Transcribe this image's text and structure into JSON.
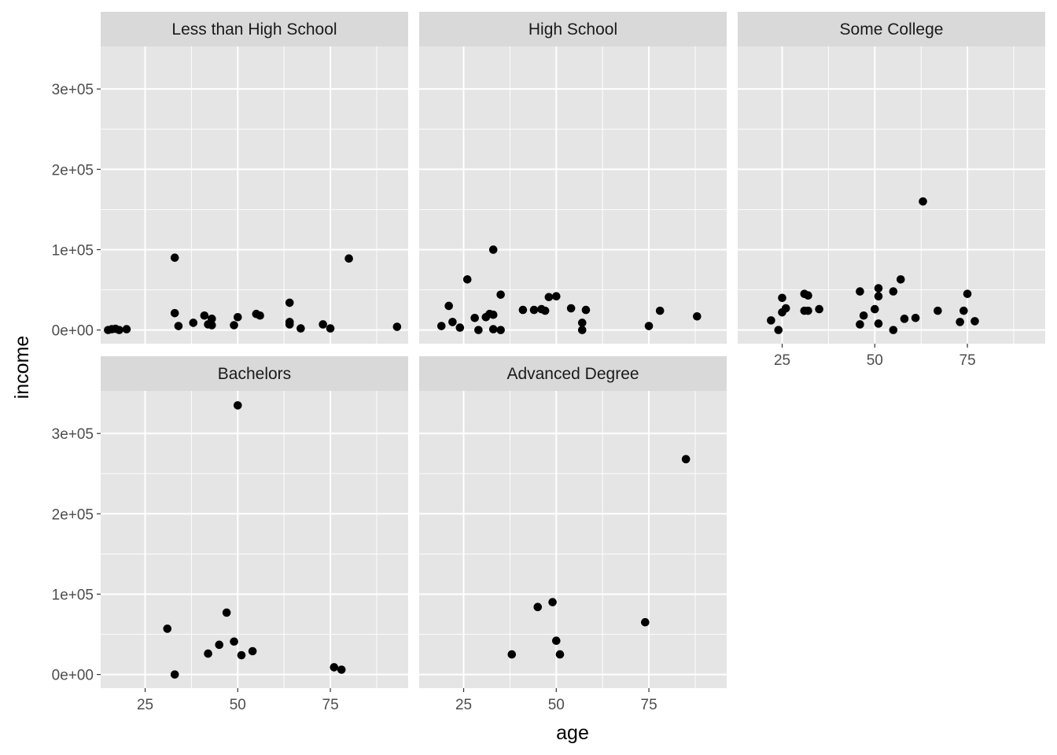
{
  "chart_data": {
    "type": "scatter",
    "facet_layout": "wrap",
    "xlabel": "age",
    "ylabel": "income",
    "xlim": [
      13,
      96
    ],
    "ylim": [
      -17000,
      353000
    ],
    "x_ticks": [
      25,
      50,
      75
    ],
    "y_ticks": [
      0,
      100000,
      200000,
      300000
    ],
    "y_tick_labels": [
      "0e+00",
      "1e+05",
      "2e+05",
      "3e+05"
    ],
    "grid": true,
    "colors": {
      "panel_background": "#e5e5e5",
      "strip_background": "#d9d9d9",
      "grid": "#ffffff",
      "point": "#000000"
    },
    "facets": [
      {
        "name": "Less than High School",
        "points": [
          [
            15,
            0
          ],
          [
            16,
            1000
          ],
          [
            17,
            1500
          ],
          [
            18,
            0
          ],
          [
            20,
            1000
          ],
          [
            33,
            90000
          ],
          [
            33,
            21000
          ],
          [
            34,
            5000
          ],
          [
            38,
            9000
          ],
          [
            41,
            18000
          ],
          [
            42,
            7000
          ],
          [
            43,
            6000
          ],
          [
            43,
            14000
          ],
          [
            49,
            6000
          ],
          [
            50,
            16000
          ],
          [
            55,
            20000
          ],
          [
            56,
            18000
          ],
          [
            64,
            34000
          ],
          [
            64,
            10000
          ],
          [
            64,
            7000
          ],
          [
            67,
            2000
          ],
          [
            73,
            7000
          ],
          [
            75,
            2000
          ],
          [
            80,
            89000
          ],
          [
            93,
            4000
          ]
        ]
      },
      {
        "name": "High School",
        "points": [
          [
            19,
            5000
          ],
          [
            21,
            30000
          ],
          [
            22,
            10000
          ],
          [
            24,
            3000
          ],
          [
            26,
            63000
          ],
          [
            28,
            15000
          ],
          [
            29,
            0
          ],
          [
            31,
            16000
          ],
          [
            32,
            20000
          ],
          [
            33,
            100000
          ],
          [
            33,
            19000
          ],
          [
            33,
            1000
          ],
          [
            35,
            44000
          ],
          [
            35,
            0
          ],
          [
            41,
            25000
          ],
          [
            44,
            25000
          ],
          [
            46,
            26000
          ],
          [
            47,
            24000
          ],
          [
            48,
            41000
          ],
          [
            50,
            42000
          ],
          [
            54,
            27000
          ],
          [
            57,
            9000
          ],
          [
            57,
            0
          ],
          [
            58,
            25000
          ],
          [
            75,
            5000
          ],
          [
            78,
            24000
          ],
          [
            88,
            17000
          ]
        ]
      },
      {
        "name": "Some College",
        "points": [
          [
            22,
            12000
          ],
          [
            24,
            0
          ],
          [
            25,
            40000
          ],
          [
            25,
            22000
          ],
          [
            26,
            27000
          ],
          [
            31,
            45000
          ],
          [
            31,
            24000
          ],
          [
            32,
            43000
          ],
          [
            32,
            24000
          ],
          [
            35,
            26000
          ],
          [
            46,
            48000
          ],
          [
            46,
            7000
          ],
          [
            47,
            18000
          ],
          [
            50,
            26000
          ],
          [
            51,
            52000
          ],
          [
            51,
            42000
          ],
          [
            51,
            8000
          ],
          [
            55,
            48000
          ],
          [
            55,
            0
          ],
          [
            57,
            63000
          ],
          [
            58,
            14000
          ],
          [
            61,
            15000
          ],
          [
            63,
            160000
          ],
          [
            67,
            24000
          ],
          [
            73,
            10000
          ],
          [
            74,
            24000
          ],
          [
            75,
            45000
          ],
          [
            77,
            11000
          ]
        ]
      },
      {
        "name": "Bachelors",
        "points": [
          [
            31,
            57000
          ],
          [
            33,
            0
          ],
          [
            42,
            26000
          ],
          [
            45,
            37000
          ],
          [
            47,
            77000
          ],
          [
            49,
            41000
          ],
          [
            50,
            335000
          ],
          [
            51,
            24000
          ],
          [
            54,
            29000
          ],
          [
            76,
            9000
          ],
          [
            78,
            6000
          ]
        ]
      },
      {
        "name": "Advanced Degree",
        "points": [
          [
            38,
            25000
          ],
          [
            45,
            84000
          ],
          [
            49,
            90000
          ],
          [
            50,
            42000
          ],
          [
            51,
            25000
          ],
          [
            74,
            65000
          ],
          [
            85,
            268000
          ]
        ]
      }
    ]
  }
}
